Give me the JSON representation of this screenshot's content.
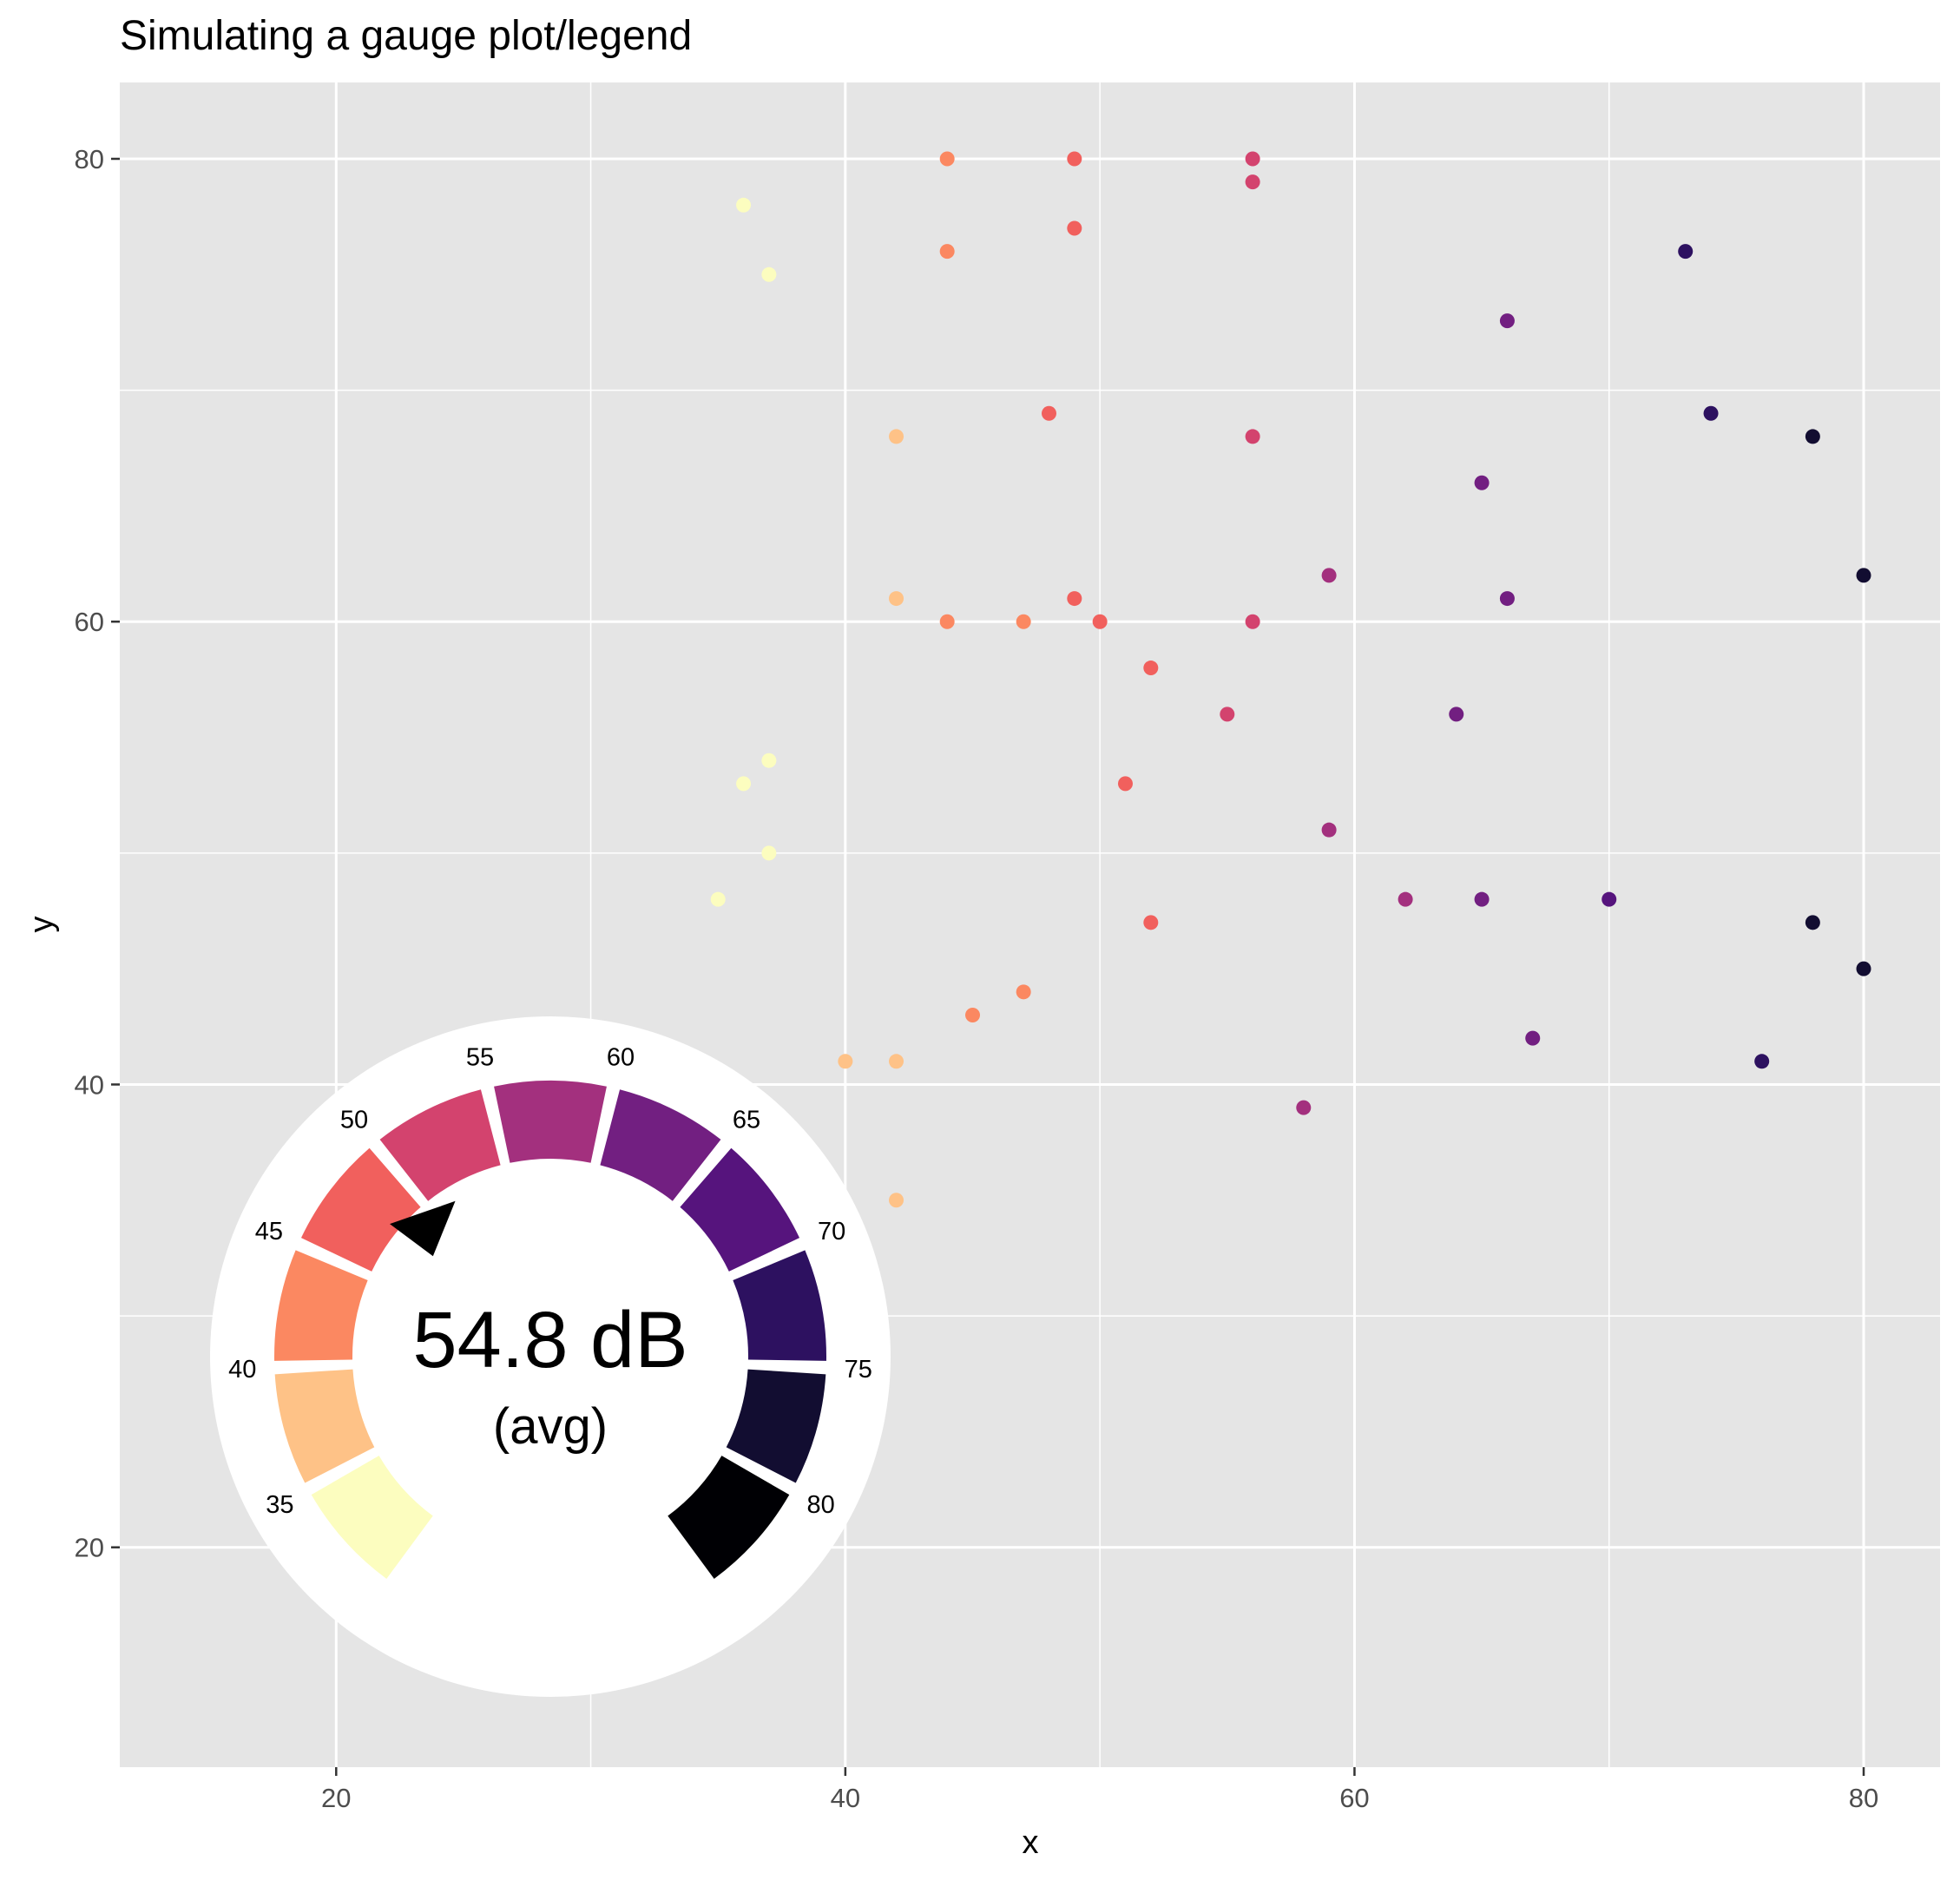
{
  "chart_data": {
    "type": "scatter",
    "title": "Simulating a gauge plot/legend",
    "xlabel": "x",
    "ylabel": "y",
    "xlim": [
      11.5,
      83
    ],
    "ylim": [
      10.5,
      83.3
    ],
    "xticks": [
      20,
      40,
      60,
      80
    ],
    "yticks": [
      20,
      40,
      60,
      80
    ],
    "grid": true,
    "color_scale": "magma (reversed): 35 light yellow → 80 black",
    "points": [
      {
        "x": 35,
        "y": 48
      },
      {
        "x": 36,
        "y": 78
      },
      {
        "x": 36,
        "y": 53
      },
      {
        "x": 37,
        "y": 75
      },
      {
        "x": 37,
        "y": 54
      },
      {
        "x": 37,
        "y": 50
      },
      {
        "x": 40,
        "y": 41
      },
      {
        "x": 42,
        "y": 68
      },
      {
        "x": 42,
        "y": 61
      },
      {
        "x": 42,
        "y": 41
      },
      {
        "x": 42,
        "y": 35
      },
      {
        "x": 44,
        "y": 80
      },
      {
        "x": 44,
        "y": 76
      },
      {
        "x": 44,
        "y": 60
      },
      {
        "x": 45,
        "y": 43
      },
      {
        "x": 47,
        "y": 60
      },
      {
        "x": 47,
        "y": 44
      },
      {
        "x": 48,
        "y": 69
      },
      {
        "x": 49,
        "y": 80
      },
      {
        "x": 49,
        "y": 77
      },
      {
        "x": 49,
        "y": 61
      },
      {
        "x": 50,
        "y": 60
      },
      {
        "x": 51,
        "y": 53
      },
      {
        "x": 52,
        "y": 58
      },
      {
        "x": 52,
        "y": 47
      },
      {
        "x": 55,
        "y": 56
      },
      {
        "x": 56,
        "y": 80
      },
      {
        "x": 56,
        "y": 79
      },
      {
        "x": 56,
        "y": 68
      },
      {
        "x": 56,
        "y": 60
      },
      {
        "x": 58,
        "y": 39
      },
      {
        "x": 59,
        "y": 62
      },
      {
        "x": 59,
        "y": 51
      },
      {
        "x": 62,
        "y": 48
      },
      {
        "x": 64,
        "y": 56
      },
      {
        "x": 65,
        "y": 66
      },
      {
        "x": 65,
        "y": 48
      },
      {
        "x": 66,
        "y": 73
      },
      {
        "x": 66,
        "y": 61
      },
      {
        "x": 67,
        "y": 42
      },
      {
        "x": 70,
        "y": 48
      },
      {
        "x": 73,
        "y": 76
      },
      {
        "x": 74,
        "y": 69
      },
      {
        "x": 76,
        "y": 41
      },
      {
        "x": 78,
        "y": 68
      },
      {
        "x": 78,
        "y": 47
      },
      {
        "x": 80,
        "y": 62
      },
      {
        "x": 80,
        "y": 45
      }
    ],
    "gauge": {
      "value": 54.8,
      "value_label": "54.8 dB",
      "sub_label": "(avg)",
      "min": 32.5,
      "max": 82.5,
      "segments": [
        {
          "from": 32.5,
          "to": 37.5,
          "color": "#FCFDBF"
        },
        {
          "from": 37.5,
          "to": 42.5,
          "color": "#FEC287"
        },
        {
          "from": 42.5,
          "to": 47.5,
          "color": "#FB8861"
        },
        {
          "from": 47.5,
          "to": 52.5,
          "color": "#F1605D"
        },
        {
          "from": 52.5,
          "to": 57.5,
          "color": "#D3436E"
        },
        {
          "from": 57.5,
          "to": 62.5,
          "color": "#A3307E"
        },
        {
          "from": 62.5,
          "to": 67.5,
          "color": "#721F81"
        },
        {
          "from": 67.5,
          "to": 72.5,
          "color": "#56147D"
        },
        {
          "from": 72.5,
          "to": 77.5,
          "color": "#2D1160"
        },
        {
          "from": 77.5,
          "to": 82.5,
          "color": "#120D31"
        },
        {
          "from": 82.5,
          "to": 87.5,
          "color": "#000004"
        }
      ],
      "tick_labels": [
        "35",
        "40",
        "45",
        "50",
        "55",
        "60",
        "65",
        "70",
        "75",
        "80"
      ]
    }
  }
}
